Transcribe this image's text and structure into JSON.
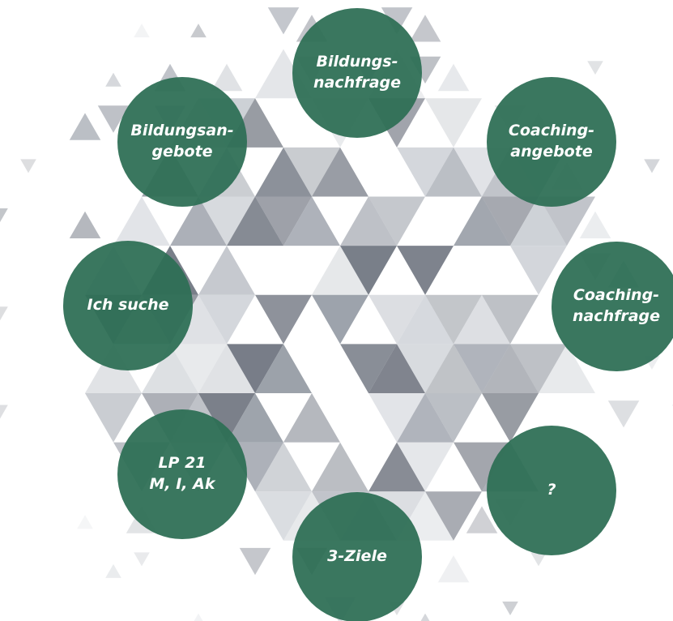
{
  "colors": {
    "circle": "#2e6e55",
    "triangle_dark": "#626874",
    "triangle_mid": "#9096a0",
    "triangle_light": "#c8ccd2",
    "text": "#ffffff"
  },
  "nodes": [
    {
      "id": "bildungsnachfrage",
      "label": "Bildungs-\nnachfrage"
    },
    {
      "id": "coachingangebote",
      "label": "Coaching-\nangebote"
    },
    {
      "id": "coachingnachfrage",
      "label": "Coaching-\nnachfrage"
    },
    {
      "id": "question",
      "label": "?"
    },
    {
      "id": "3-ziele",
      "label": "3-Ziele"
    },
    {
      "id": "lp21",
      "label": "LP 21\nM, I, Ak"
    },
    {
      "id": "ich-suche",
      "label": "Ich suche"
    },
    {
      "id": "bildungsangebote",
      "label": "Bildungsan-\ngebote"
    }
  ]
}
